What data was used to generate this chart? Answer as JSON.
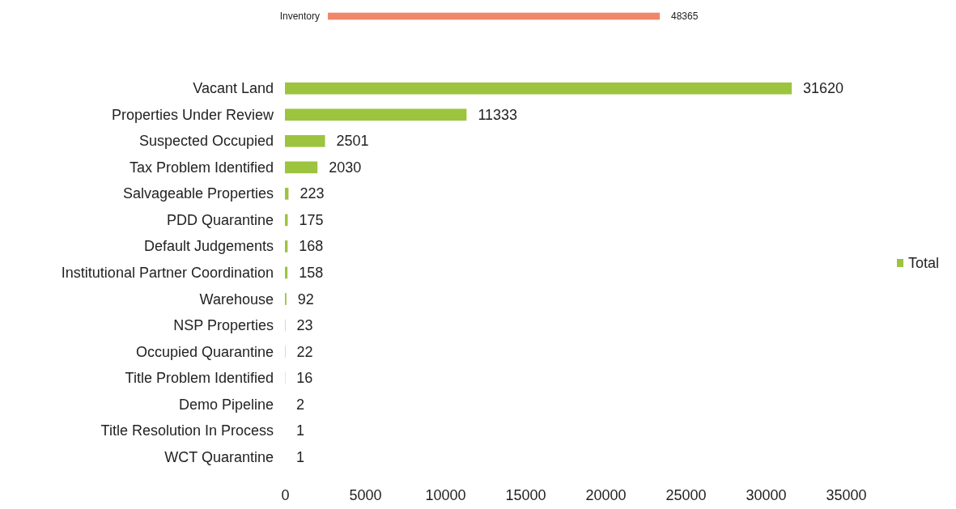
{
  "chart_data": [
    {
      "type": "bar",
      "orientation": "horizontal",
      "categories": [
        "Inventory"
      ],
      "values": [
        48365
      ],
      "color": "#f0866a",
      "data_labels": true
    },
    {
      "type": "bar",
      "orientation": "horizontal",
      "categories": [
        "Vacant Land",
        "Properties Under Review",
        "Suspected Occupied",
        "Tax Problem Identified",
        "Salvageable Properties",
        "PDD Quarantine",
        "Default Judgements",
        "Institutional Partner Coordination",
        "Warehouse",
        "NSP Properties",
        "Occupied Quarantine",
        "Title Problem Identified",
        "Demo Pipeline",
        "Title Resolution In Process",
        "WCT Quarantine"
      ],
      "series": [
        {
          "name": "Total",
          "color": "#9cc43e",
          "values": [
            31620,
            11333,
            2501,
            2030,
            223,
            175,
            168,
            158,
            92,
            23,
            22,
            16,
            2,
            1,
            1
          ]
        }
      ],
      "xlim": [
        0,
        35000
      ],
      "xticks": [
        0,
        5000,
        10000,
        15000,
        20000,
        25000,
        30000,
        35000
      ],
      "data_labels": true,
      "legend": "right",
      "grid": false
    }
  ]
}
